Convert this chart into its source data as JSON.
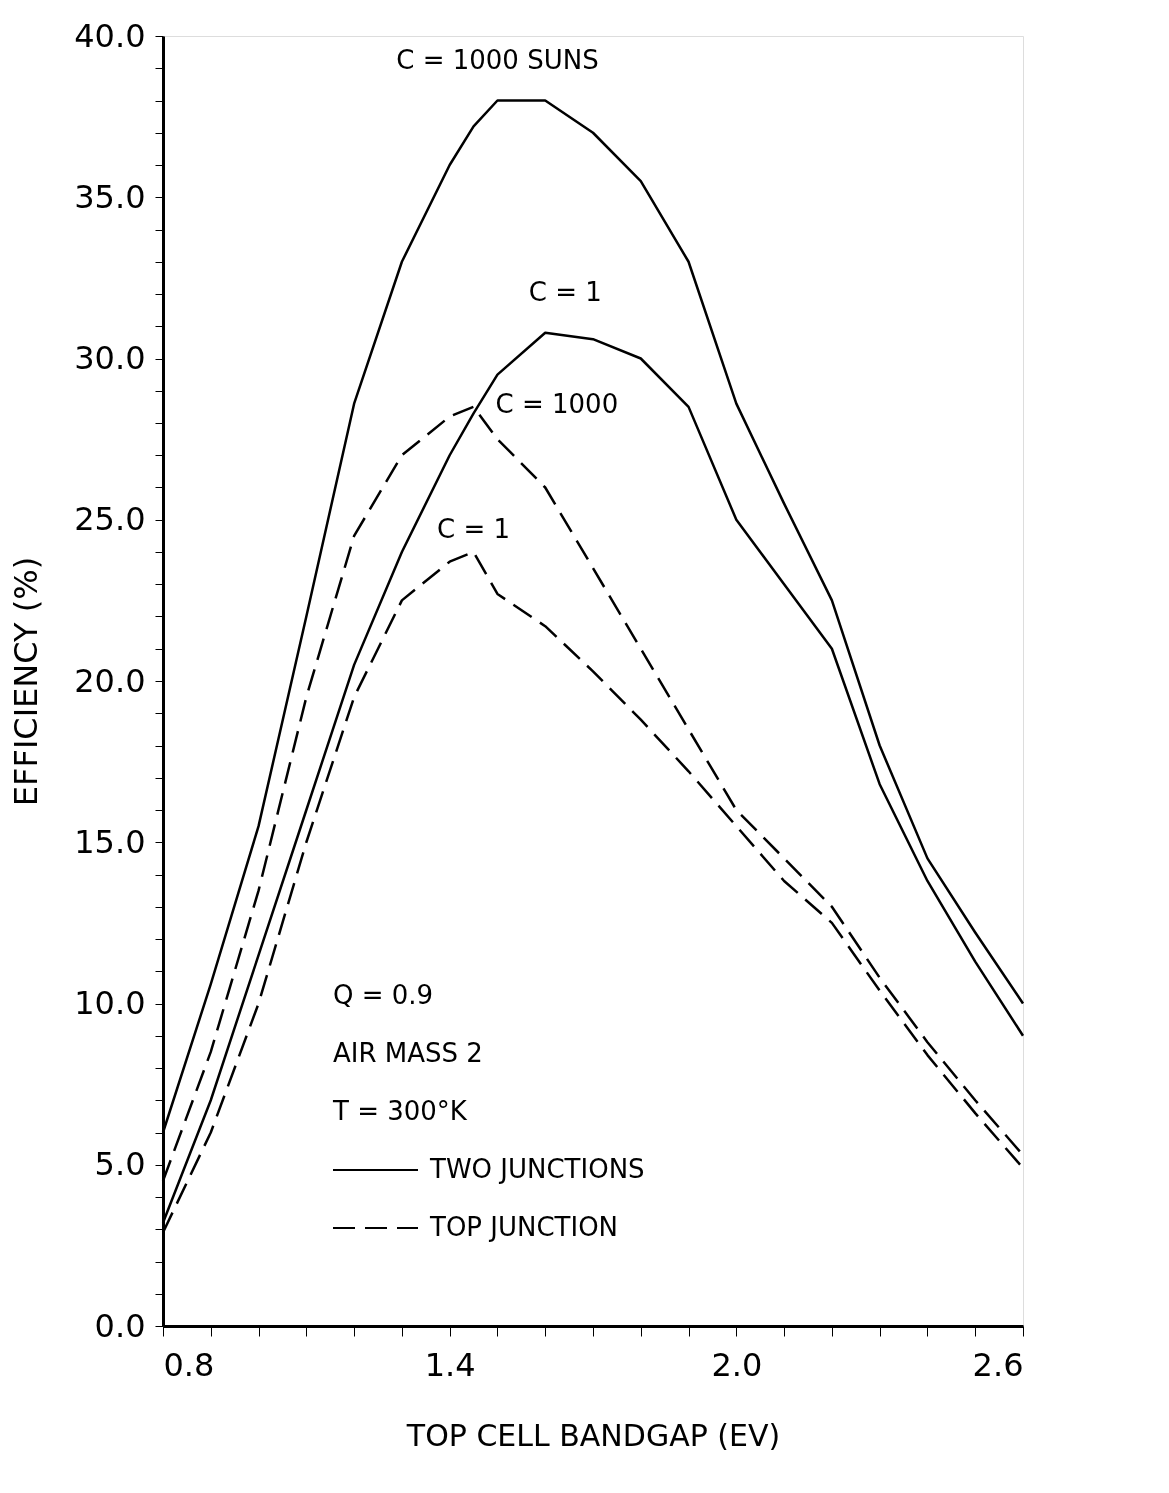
{
  "chart_data": {
    "type": "line",
    "xlabel": "TOP CELL BANDGAP (EV)",
    "ylabel": "EFFICIENCY (%)",
    "x": [
      0.8,
      0.9,
      1.0,
      1.1,
      1.2,
      1.3,
      1.4,
      1.45,
      1.5,
      1.6,
      1.7,
      1.8,
      1.9,
      2.0,
      2.1,
      2.2,
      2.3,
      2.4,
      2.5,
      2.6
    ],
    "series": [
      {
        "name": "C = 1000 SUNS",
        "color": "#000000",
        "line_style": "solid",
        "values": [
          6.0,
          10.6,
          15.5,
          22.0,
          28.6,
          33.0,
          36.0,
          37.2,
          38.0,
          38.0,
          37.0,
          35.5,
          33.0,
          28.6,
          25.5,
          22.5,
          18.0,
          14.5,
          12.2,
          10.0
        ]
      },
      {
        "name": "C = 1",
        "color": "#000000",
        "line_style": "solid",
        "values": [
          3.2,
          7.0,
          11.5,
          16.0,
          20.5,
          24.0,
          27.0,
          28.3,
          29.5,
          30.8,
          30.6,
          30.0,
          28.5,
          25.0,
          23.0,
          21.0,
          16.8,
          13.8,
          11.3,
          9.0
        ]
      },
      {
        "name": "C = 1000",
        "color": "#000000",
        "line_style": "dashed",
        "values": [
          4.5,
          8.5,
          13.5,
          19.5,
          24.5,
          27.0,
          28.2,
          28.5,
          27.5,
          26.0,
          23.5,
          21.0,
          18.5,
          16.0,
          14.5,
          13.0,
          10.8,
          8.8,
          7.0,
          5.3
        ]
      },
      {
        "name": "C = 1",
        "color": "#000000",
        "line_style": "dashed",
        "values": [
          2.9,
          6.0,
          10.0,
          15.0,
          19.5,
          22.5,
          23.7,
          24.0,
          22.7,
          21.7,
          20.3,
          18.8,
          17.2,
          15.5,
          13.8,
          12.5,
          10.4,
          8.4,
          6.6,
          4.9
        ]
      }
    ],
    "xlim": [
      0.8,
      2.6
    ],
    "xticks": [
      {
        "value": 0.8,
        "label": "0.8"
      },
      {
        "value": 0.9,
        "label": null
      },
      {
        "value": 1.0,
        "label": null
      },
      {
        "value": 1.1,
        "label": null
      },
      {
        "value": 1.2,
        "label": null
      },
      {
        "value": 1.3,
        "label": null
      },
      {
        "value": 1.4,
        "label": "1.4"
      },
      {
        "value": 1.5,
        "label": null
      },
      {
        "value": 1.6,
        "label": null
      },
      {
        "value": 1.7,
        "label": null
      },
      {
        "value": 1.8,
        "label": null
      },
      {
        "value": 1.9,
        "label": null
      },
      {
        "value": 2.0,
        "label": "2.0"
      },
      {
        "value": 2.1,
        "label": null
      },
      {
        "value": 2.2,
        "label": null
      },
      {
        "value": 2.3,
        "label": null
      },
      {
        "value": 2.4,
        "label": null
      },
      {
        "value": 2.5,
        "label": null
      },
      {
        "value": 2.6,
        "label": "2.6"
      }
    ],
    "ylim": [
      0,
      40
    ],
    "yticks": [
      {
        "value": 0,
        "label": "0.0"
      },
      {
        "value": 1,
        "label": null
      },
      {
        "value": 2,
        "label": null
      },
      {
        "value": 3,
        "label": null
      },
      {
        "value": 4,
        "label": null
      },
      {
        "value": 5,
        "label": "5.0"
      },
      {
        "value": 6,
        "label": null
      },
      {
        "value": 7,
        "label": null
      },
      {
        "value": 8,
        "label": null
      },
      {
        "value": 9,
        "label": null
      },
      {
        "value": 10,
        "label": "10.0"
      },
      {
        "value": 11,
        "label": null
      },
      {
        "value": 12,
        "label": null
      },
      {
        "value": 13,
        "label": null
      },
      {
        "value": 14,
        "label": null
      },
      {
        "value": 15,
        "label": "15.0"
      },
      {
        "value": 16,
        "label": null
      },
      {
        "value": 17,
        "label": null
      },
      {
        "value": 18,
        "label": null
      },
      {
        "value": 19,
        "label": null
      },
      {
        "value": 20,
        "label": "20.0"
      },
      {
        "value": 21,
        "label": null
      },
      {
        "value": 22,
        "label": null
      },
      {
        "value": 23,
        "label": null
      },
      {
        "value": 24,
        "label": null
      },
      {
        "value": 25,
        "label": "25.0"
      },
      {
        "value": 26,
        "label": null
      },
      {
        "value": 27,
        "label": null
      },
      {
        "value": 28,
        "label": null
      },
      {
        "value": 29,
        "label": null
      },
      {
        "value": 30,
        "label": "30.0"
      },
      {
        "value": 31,
        "label": null
      },
      {
        "value": 32,
        "label": null
      },
      {
        "value": 33,
        "label": null
      },
      {
        "value": 34,
        "label": null
      },
      {
        "value": 35,
        "label": "35.0"
      },
      {
        "value": 36,
        "label": null
      },
      {
        "value": 37,
        "label": null
      },
      {
        "value": 38,
        "label": null
      },
      {
        "value": 39,
        "label": null
      },
      {
        "value": 40,
        "label": "40.0"
      }
    ],
    "grid": false,
    "marker": "none",
    "annotations": [
      "Q = 0.9",
      "AIR MASS 2",
      "T = 300°K",
      "TWO JUNCTIONS",
      "TOP JUNCTION"
    ]
  }
}
